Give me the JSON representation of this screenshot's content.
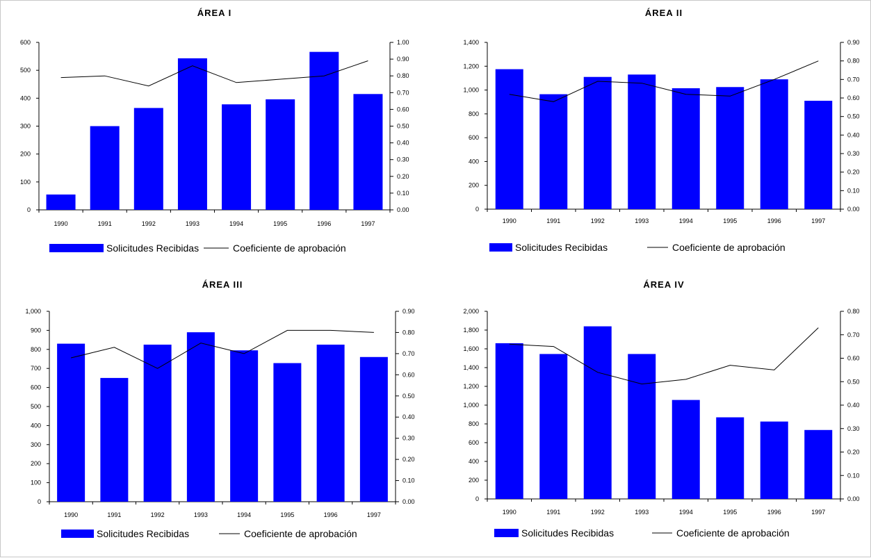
{
  "chart_data": [
    {
      "type": "bar",
      "title": "ÁREA I",
      "categories": [
        "1990",
        "1991",
        "1992",
        "1993",
        "1994",
        "1995",
        "1996",
        "1997"
      ],
      "series": [
        {
          "name": "Solicitudes Recibidas",
          "kind": "bar",
          "axis": "left",
          "color": "#0000ff",
          "values": [
            55,
            300,
            365,
            543,
            378,
            396,
            566,
            415
          ]
        },
        {
          "name": "Coeficiente de aprobación",
          "kind": "line",
          "axis": "right",
          "color": "#000000",
          "values": [
            0.79,
            0.8,
            0.74,
            0.86,
            0.76,
            0.78,
            0.8,
            0.89
          ]
        }
      ],
      "ylim": [
        0,
        600
      ],
      "yticks": [
        "0",
        "100",
        "200",
        "300",
        "400",
        "500",
        "600"
      ],
      "y2lim": [
        0,
        1.0
      ],
      "y2ticks": [
        "0.00",
        "0.10",
        "0.20",
        "0.30",
        "0.40",
        "0.50",
        "0.60",
        "0.70",
        "0.80",
        "0.90",
        "1.00"
      ],
      "legend": "bottom"
    },
    {
      "type": "bar",
      "title": "ÁREA II",
      "categories": [
        "1990",
        "1991",
        "1992",
        "1993",
        "1994",
        "1995",
        "1996",
        "1997"
      ],
      "series": [
        {
          "name": "Solicitudes Recibidas",
          "kind": "bar",
          "axis": "left",
          "color": "#0000ff",
          "values": [
            1175,
            965,
            1110,
            1130,
            1015,
            1025,
            1090,
            910
          ]
        },
        {
          "name": "Coeficiente de aprobación",
          "kind": "line",
          "axis": "right",
          "color": "#000000",
          "values": [
            0.62,
            0.58,
            0.69,
            0.68,
            0.62,
            0.61,
            0.7,
            0.8
          ]
        }
      ],
      "ylim": [
        0,
        1400
      ],
      "yticks": [
        "0",
        "200",
        "400",
        "600",
        "800",
        "1,000",
        "1,200",
        "1,400"
      ],
      "y2lim": [
        0,
        0.9
      ],
      "y2ticks": [
        "0.00",
        "0.10",
        "0.20",
        "0.30",
        "0.40",
        "0.50",
        "0.60",
        "0.70",
        "0.80",
        "0.90"
      ],
      "legend": "bottom"
    },
    {
      "type": "bar",
      "title": "ÁREA III",
      "categories": [
        "1990",
        "1991",
        "1992",
        "1993",
        "1994",
        "1995",
        "1996",
        "1997"
      ],
      "series": [
        {
          "name": "Solicitudes Recibidas",
          "kind": "bar",
          "axis": "left",
          "color": "#0000ff",
          "values": [
            830,
            650,
            825,
            890,
            795,
            728,
            825,
            760
          ]
        },
        {
          "name": "Coeficiente de aprobación",
          "kind": "line",
          "axis": "right",
          "color": "#000000",
          "values": [
            0.68,
            0.73,
            0.63,
            0.75,
            0.7,
            0.81,
            0.81,
            0.8
          ]
        }
      ],
      "ylim": [
        0,
        1000
      ],
      "yticks": [
        "0",
        "100",
        "200",
        "300",
        "400",
        "500",
        "600",
        "700",
        "800",
        "900",
        "1,000"
      ],
      "y2lim": [
        0,
        0.9
      ],
      "y2ticks": [
        "0.00",
        "0.10",
        "0.20",
        "0.30",
        "0.40",
        "0.50",
        "0.60",
        "0.70",
        "0.80",
        "0.90"
      ],
      "legend": "bottom"
    },
    {
      "type": "bar",
      "title": "ÁREA IV",
      "categories": [
        "1990",
        "1991",
        "1992",
        "1993",
        "1994",
        "1995",
        "1996",
        "1997"
      ],
      "series": [
        {
          "name": "Solicitudes Recibidas",
          "kind": "bar",
          "axis": "left",
          "color": "#0000ff",
          "values": [
            1660,
            1545,
            1840,
            1545,
            1055,
            870,
            825,
            735
          ]
        },
        {
          "name": "Coeficiente de aprobación",
          "kind": "line",
          "axis": "right",
          "color": "#000000",
          "values": [
            0.66,
            0.65,
            0.54,
            0.49,
            0.51,
            0.57,
            0.55,
            0.73
          ]
        }
      ],
      "ylim": [
        0,
        2000
      ],
      "yticks": [
        "0",
        "200",
        "400",
        "600",
        "800",
        "1,000",
        "1,200",
        "1,400",
        "1,600",
        "1,800",
        "2,000"
      ],
      "y2lim": [
        0,
        0.8
      ],
      "y2ticks": [
        "0.00",
        "0.10",
        "0.20",
        "0.30",
        "0.40",
        "0.50",
        "0.60",
        "0.70",
        "0.80"
      ],
      "legend": "bottom"
    }
  ]
}
